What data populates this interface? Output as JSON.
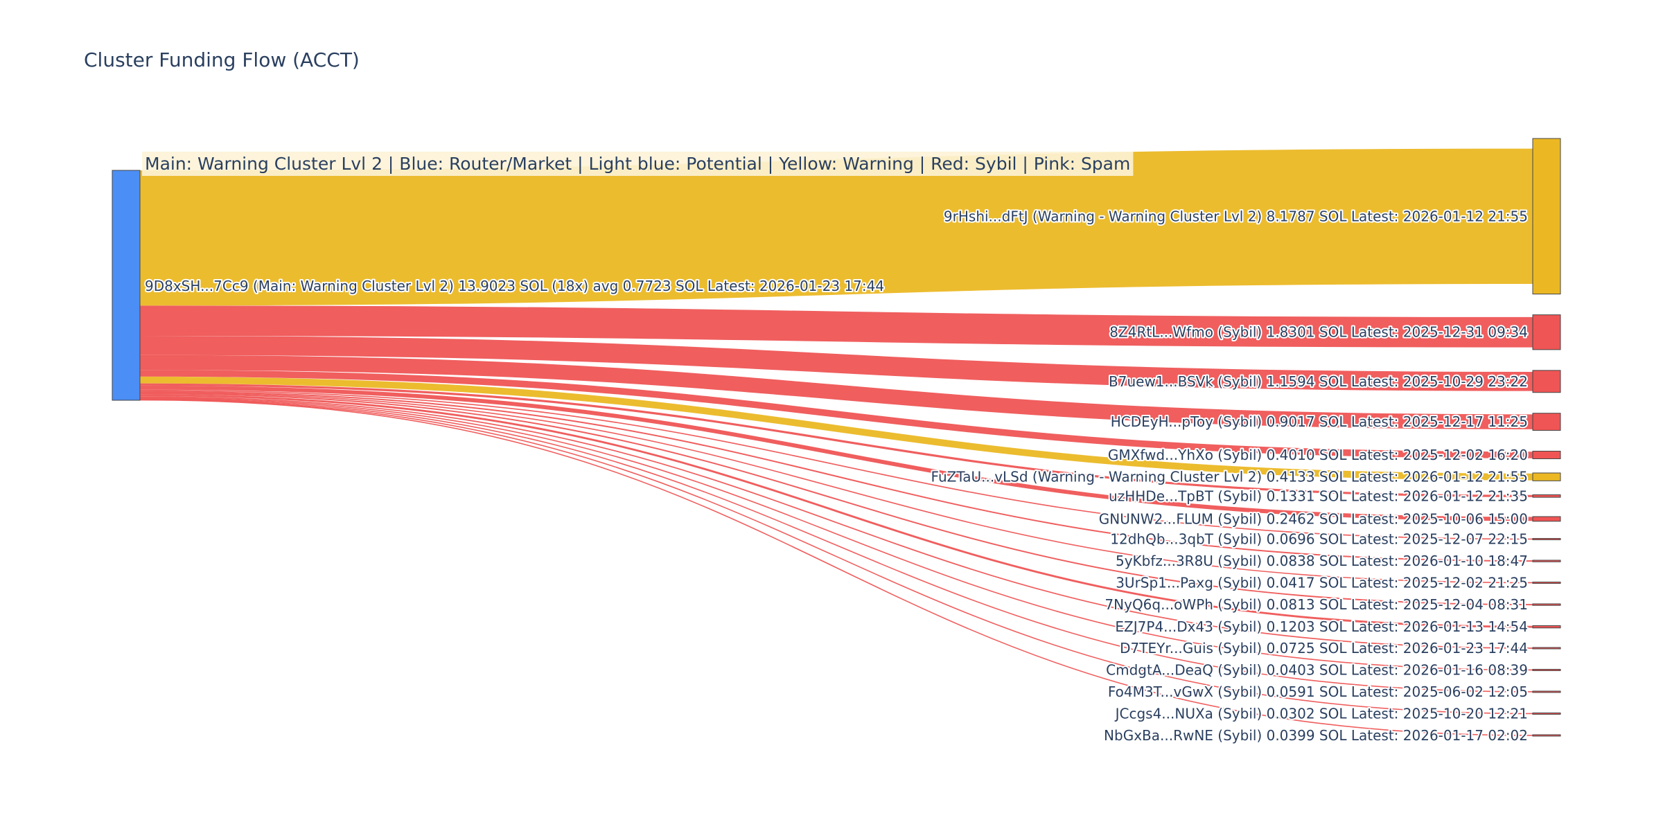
{
  "colors": {
    "main": "#4b8ef5",
    "warning": "#ebb824",
    "sybil": "#ef5555",
    "text": "#2a3f5f",
    "legend_bg": "#fdf3d7"
  },
  "chart_data": {
    "type": "sankey",
    "title": "Cluster Funding Flow (ACCT)",
    "legend_text": "Main: Warning Cluster Lvl 2  |  Blue: Router/Market | Light blue: Potential | Yellow: Warning | Red: Sybil | Pink: Spam",
    "source": {
      "id": "9D8xSH...7Cc9",
      "category": "main",
      "label": "9D8xSH...7Cc9 (Main: Warning Cluster Lvl 2) 13.9023 SOL (18x) avg 0.7723 SOL Latest: 2026-01-23 17:44",
      "total": 13.9023
    },
    "targets": [
      {
        "id": "9rHshi...dFtJ",
        "category": "warning",
        "value": 8.1787,
        "label": "9rHshi...dFtJ (Warning - Warning Cluster Lvl 2) 8.1787 SOL Latest: 2026-01-12 21:55"
      },
      {
        "id": "8Z4RtL...Wfmo",
        "category": "sybil",
        "value": 1.8301,
        "label": "8Z4RtL...Wfmo (Sybil) 1.8301 SOL Latest: 2025-12-31 09:34"
      },
      {
        "id": "B7uew1...BSVk",
        "category": "sybil",
        "value": 1.1594,
        "label": "B7uew1...BSVk (Sybil) 1.1594 SOL Latest: 2025-10-29 23:22"
      },
      {
        "id": "HCDEyH...pToy",
        "category": "sybil",
        "value": 0.9017,
        "label": "HCDEyH...pToy (Sybil) 0.9017 SOL Latest: 2025-12-17 11:25"
      },
      {
        "id": "GMXfwd...YhXo",
        "category": "sybil",
        "value": 0.401,
        "label": "GMXfwd...YhXo (Sybil) 0.4010 SOL Latest: 2025-12-02 16:20"
      },
      {
        "id": "FuZTaU...vLSd",
        "category": "warning",
        "value": 0.4133,
        "label": "FuZTaU...vLSd (Warning - Warning Cluster Lvl 2) 0.4133 SOL Latest: 2026-01-12 21:55"
      },
      {
        "id": "uzHHDe...TpBT",
        "category": "sybil",
        "value": 0.1331,
        "label": "uzHHDe...TpBT (Sybil) 0.1331 SOL Latest: 2026-01-12 21:35"
      },
      {
        "id": "GNUNW2...FLUM",
        "category": "sybil",
        "value": 0.2462,
        "label": "GNUNW2...FLUM (Sybil) 0.2462 SOL Latest: 2025-10-06 15:00"
      },
      {
        "id": "12dhQb...3qbT",
        "category": "sybil",
        "value": 0.0696,
        "label": "12dhQb...3qbT (Sybil) 0.0696 SOL Latest: 2025-12-07 22:15"
      },
      {
        "id": "5yKbfz...3R8U",
        "category": "sybil",
        "value": 0.0838,
        "label": "5yKbfz...3R8U (Sybil) 0.0838 SOL Latest: 2026-01-10 18:47"
      },
      {
        "id": "3UrSp1...Paxg",
        "category": "sybil",
        "value": 0.0417,
        "label": "3UrSp1...Paxg (Sybil) 0.0417 SOL Latest: 2025-12-02 21:25"
      },
      {
        "id": "7NyQ6q...oWPh",
        "category": "sybil",
        "value": 0.0813,
        "label": "7NyQ6q...oWPh (Sybil) 0.0813 SOL Latest: 2025-12-04 08:31"
      },
      {
        "id": "EZJ7P4...Dx43",
        "category": "sybil",
        "value": 0.1203,
        "label": "EZJ7P4...Dx43 (Sybil) 0.1203 SOL Latest: 2026-01-13 14:54"
      },
      {
        "id": "D7TEYr...Guis",
        "category": "sybil",
        "value": 0.0725,
        "label": "D7TEYr...Guis (Sybil) 0.0725 SOL Latest: 2026-01-23 17:44"
      },
      {
        "id": "CmdgtA...DeaQ",
        "category": "sybil",
        "value": 0.0403,
        "label": "CmdgtA...DeaQ (Sybil) 0.0403 SOL Latest: 2026-01-16 08:39"
      },
      {
        "id": "Fo4M3T...vGwX",
        "category": "sybil",
        "value": 0.0591,
        "label": "Fo4M3T...vGwX (Sybil) 0.0591 SOL Latest: 2025-06-02 12:05"
      },
      {
        "id": "JCcgs4...NUXa",
        "category": "sybil",
        "value": 0.0302,
        "label": "JCcgs4...NUXa (Sybil) 0.0302 SOL Latest: 2025-10-20 12:21"
      },
      {
        "id": "NbGxBa...RwNE",
        "category": "sybil",
        "value": 0.0399,
        "label": "NbGxBa...RwNE (Sybil) 0.0399 SOL Latest: 2026-01-17 02:02"
      }
    ]
  }
}
